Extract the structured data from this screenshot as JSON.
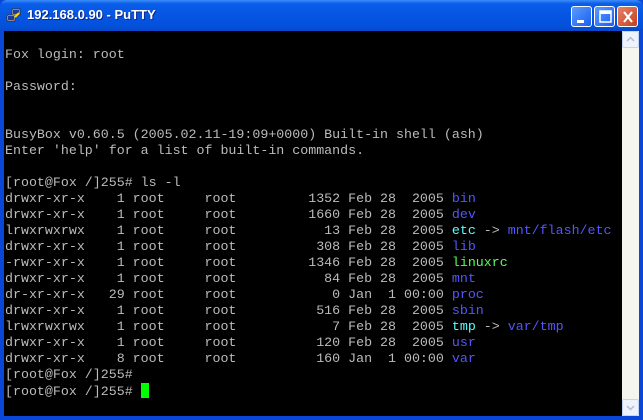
{
  "window": {
    "title": "192.168.0.90 - PuTTY",
    "icon": "putty-icon"
  },
  "colors": {
    "text": "#bbbbbb",
    "dir": "#5555ff",
    "link": "#55ffff",
    "exec": "#55ff55",
    "cursor": "#00ff00",
    "background": "#000000"
  },
  "terminal": {
    "lines": [
      [],
      [
        {
          "t": "Fox login: root"
        }
      ],
      [],
      [
        {
          "t": "Password:"
        }
      ],
      [],
      [],
      [
        {
          "t": "BusyBox v0.60.5 (2005.02.11-19:09+0000) Built-in shell (ash)"
        }
      ],
      [
        {
          "t": "Enter 'help' for a list of built-in commands."
        }
      ],
      [],
      [
        {
          "t": "[root@Fox /]255# ls -l"
        }
      ],
      [
        {
          "t": "drwxr-xr-x    1 root     root         1352 Feb 28  2005 "
        },
        {
          "t": "bin",
          "c": "dir"
        }
      ],
      [
        {
          "t": "drwxr-xr-x    1 root     root         1660 Feb 28  2005 "
        },
        {
          "t": "dev",
          "c": "dir"
        }
      ],
      [
        {
          "t": "lrwxrwxrwx    1 root     root           13 Feb 28  2005 "
        },
        {
          "t": "etc",
          "c": "link"
        },
        {
          "t": " -> "
        },
        {
          "t": "mnt/flash/etc",
          "c": "dir"
        }
      ],
      [
        {
          "t": "drwxr-xr-x    1 root     root          308 Feb 28  2005 "
        },
        {
          "t": "lib",
          "c": "dir"
        }
      ],
      [
        {
          "t": "-rwxr-xr-x    1 root     root         1346 Feb 28  2005 "
        },
        {
          "t": "linuxrc",
          "c": "exec"
        }
      ],
      [
        {
          "t": "drwxr-xr-x    1 root     root           84 Feb 28  2005 "
        },
        {
          "t": "mnt",
          "c": "dir"
        }
      ],
      [
        {
          "t": "dr-xr-xr-x   29 root     root            0 Jan  1 00:00 "
        },
        {
          "t": "proc",
          "c": "dir"
        }
      ],
      [
        {
          "t": "drwxr-xr-x    1 root     root          516 Feb 28  2005 "
        },
        {
          "t": "sbin",
          "c": "dir"
        }
      ],
      [
        {
          "t": "lrwxrwxrwx    1 root     root            7 Feb 28  2005 "
        },
        {
          "t": "tmp",
          "c": "link"
        },
        {
          "t": " -> "
        },
        {
          "t": "var/tmp",
          "c": "dir"
        }
      ],
      [
        {
          "t": "drwxr-xr-x    1 root     root          120 Feb 28  2005 "
        },
        {
          "t": "usr",
          "c": "dir"
        }
      ],
      [
        {
          "t": "drwxr-xr-x    8 root     root          160 Jan  1 00:00 "
        },
        {
          "t": "var",
          "c": "dir"
        }
      ],
      [
        {
          "t": "[root@Fox /]255#"
        }
      ],
      [
        {
          "t": "[root@Fox /]255# "
        },
        {
          "cursor": true
        }
      ],
      []
    ]
  }
}
